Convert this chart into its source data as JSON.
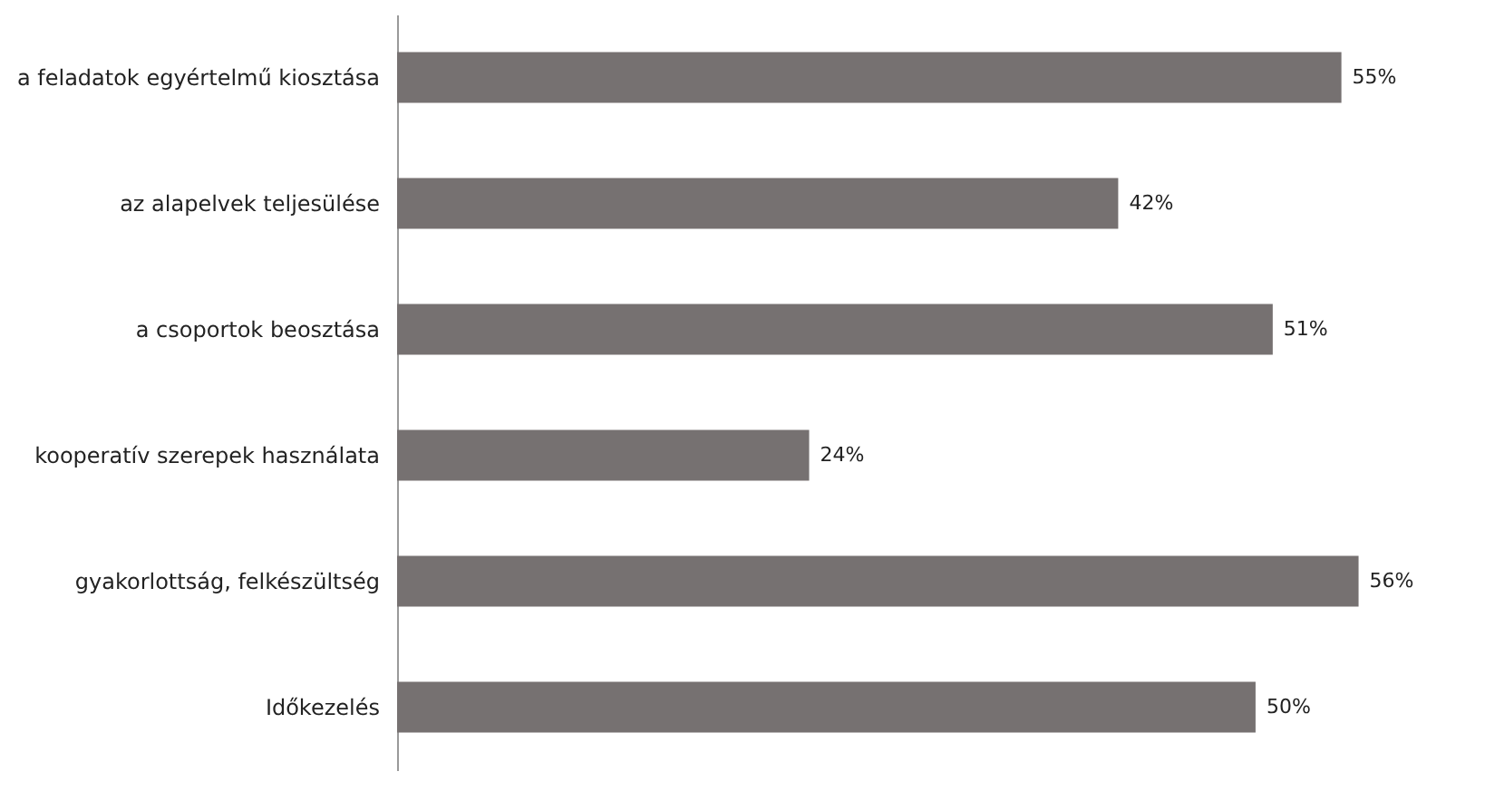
{
  "chart_data": {
    "type": "bar",
    "orientation": "horizontal",
    "categories": [
      "a feladatok egyértelmű kiosztása",
      "az alapelvek teljesülése",
      "a csoportok beosztása",
      "kooperatív szerepek használata",
      "gyakorlottság, felkészültség",
      "Időkezelés"
    ],
    "values": [
      55,
      42,
      51,
      24,
      56,
      50
    ],
    "value_labels": [
      "55%",
      "42%",
      "51%",
      "24%",
      "56%",
      "50%"
    ],
    "color": "#767171"
  }
}
